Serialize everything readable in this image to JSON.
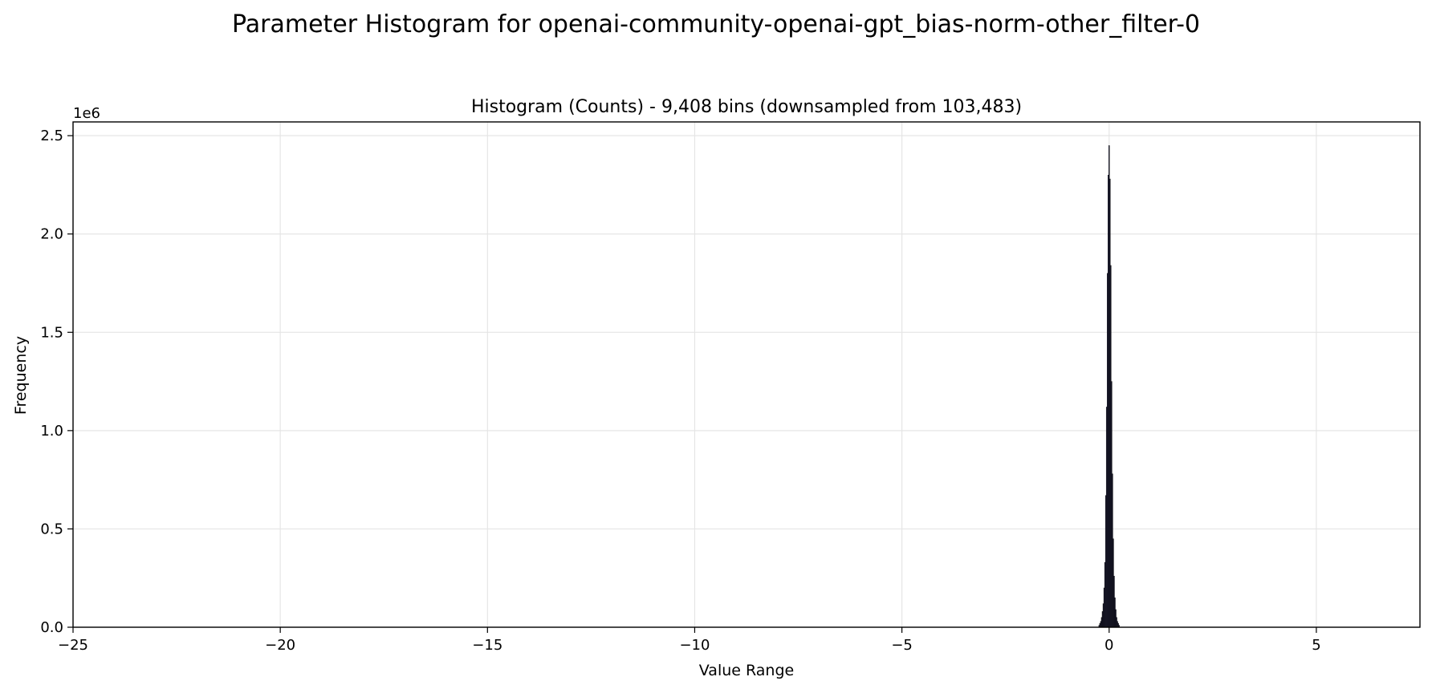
{
  "figure_title": "Parameter Histogram for openai-community-openai-gpt_bias-norm-other_filter-0",
  "chart_data": {
    "type": "bar",
    "title": "Histogram (Counts) - 9,408 bins (downsampled from 103,483)",
    "xlabel": "Value Range",
    "ylabel": "Frequency",
    "y_scale_label": "1e6",
    "xlim": [
      -25,
      7.5
    ],
    "ylim": [
      0,
      2.57
    ],
    "x_ticks": [
      -25,
      -20,
      -15,
      -10,
      -5,
      0,
      5
    ],
    "x_tick_labels": [
      "−25",
      "−20",
      "−15",
      "−10",
      "−5",
      "0",
      "5"
    ],
    "y_ticks": [
      0.0,
      0.5,
      1.0,
      1.5,
      2.0,
      2.5
    ],
    "y_tick_labels": [
      "0.0",
      "0.5",
      "1.0",
      "1.5",
      "2.0",
      "2.5"
    ],
    "grid": true,
    "bar_color": "#1f1f3a",
    "bar_edge_color": "#000000",
    "bins": {
      "x": [
        -0.24,
        -0.22,
        -0.2,
        -0.18,
        -0.16,
        -0.14,
        -0.12,
        -0.1,
        -0.08,
        -0.06,
        -0.04,
        -0.02,
        0.0,
        0.02,
        0.04,
        0.06,
        0.08,
        0.1,
        0.12,
        0.14,
        0.16,
        0.18,
        0.2,
        0.22,
        0.24
      ],
      "values": [
        0.01,
        0.02,
        0.03,
        0.05,
        0.08,
        0.12,
        0.2,
        0.33,
        0.67,
        1.12,
        1.8,
        2.3,
        2.45,
        2.28,
        1.84,
        1.25,
        0.78,
        0.45,
        0.26,
        0.15,
        0.09,
        0.05,
        0.03,
        0.02,
        0.01
      ]
    }
  }
}
